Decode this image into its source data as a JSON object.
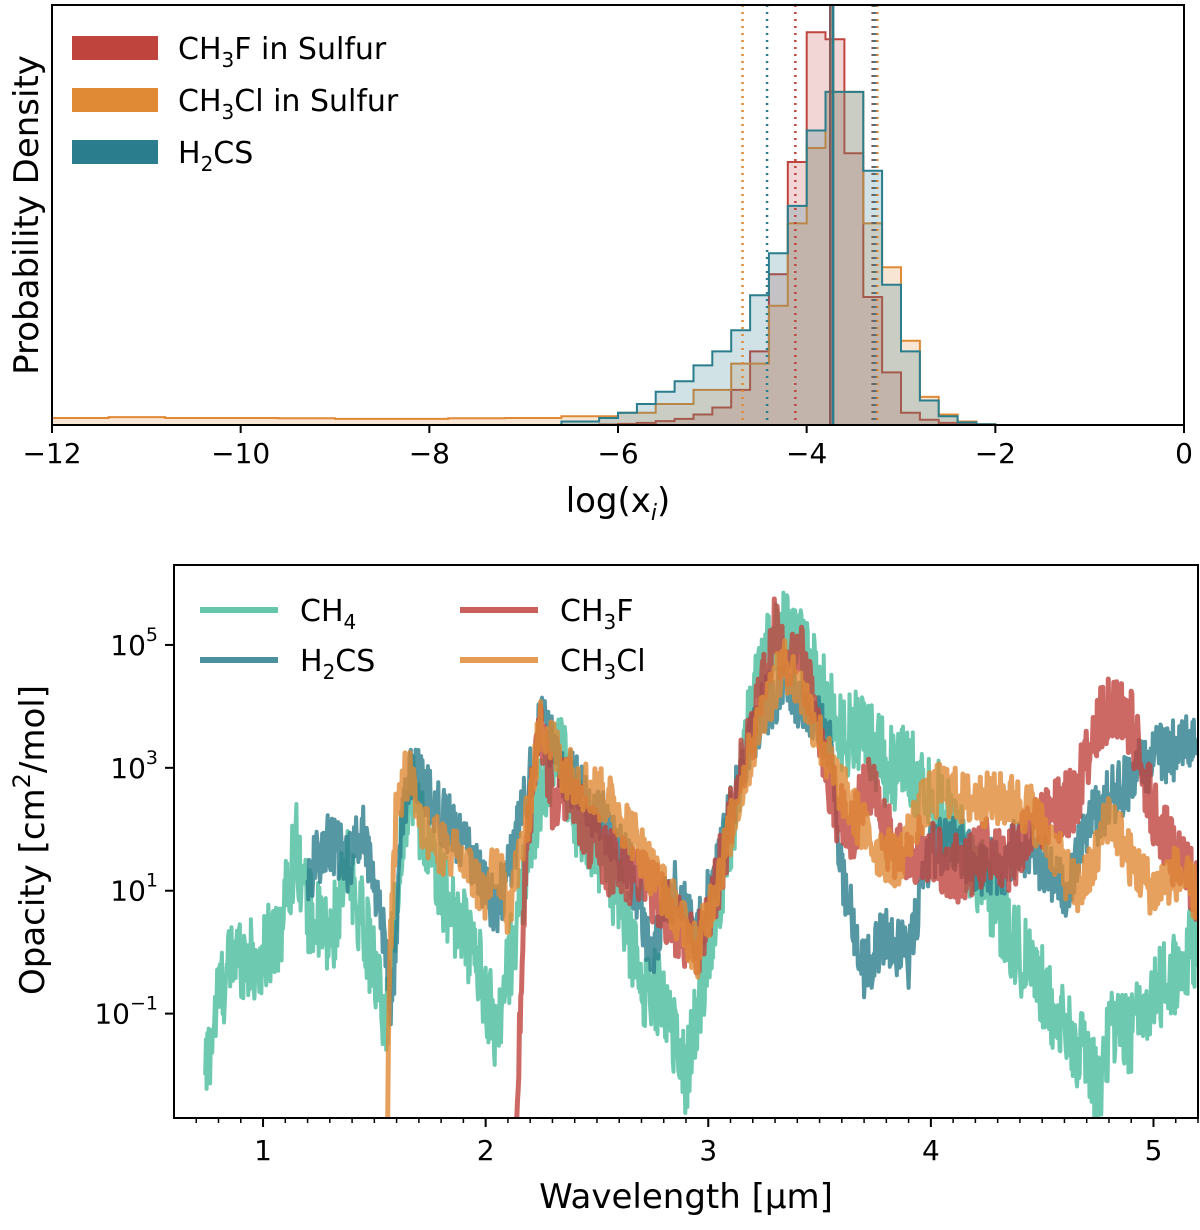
{
  "colors": {
    "ch3f": "#c0443e",
    "ch3cl": "#e08a36",
    "h2cs": "#2a7d8c",
    "ch4": "#49bd9e",
    "median_gray": "#666666"
  },
  "chart_data": [
    {
      "type": "histogram",
      "title": "",
      "xlabel": "log(x_i)",
      "xlabel_parts": {
        "main": "log(x",
        "sub": "i",
        "close": ")"
      },
      "ylabel": "Probability Density",
      "xlim": [
        -12,
        0
      ],
      "xticks": [
        -12,
        -10,
        -8,
        -6,
        -4,
        -2,
        0
      ],
      "xtick_labels": [
        "−12",
        "−10",
        "−8",
        "−6",
        "−4",
        "−2",
        "0"
      ],
      "legend_position": "top-left",
      "series": [
        {
          "name": "CH3F in Sulfur",
          "label_parts": [
            "CH",
            "3",
            "F in Sulfur"
          ],
          "color_key": "ch3f",
          "fill": true,
          "edges": [
            -6.2,
            -6.0,
            -5.8,
            -5.6,
            -5.4,
            -5.2,
            -5.0,
            -4.8,
            -4.6,
            -4.4,
            -4.2,
            -4.0,
            -3.8,
            -3.6,
            -3.4,
            -3.2,
            -3.0,
            -2.8,
            -2.6,
            -2.4,
            -2.2,
            -2.0
          ],
          "density": [
            0.003,
            0.006,
            0.012,
            0.022,
            0.035,
            0.06,
            0.1,
            0.2,
            0.42,
            0.86,
            1.5,
            2.24,
            2.2,
            1.55,
            0.73,
            0.3,
            0.07,
            0.03,
            0.012,
            0.004,
            0.001
          ],
          "median": -3.75,
          "ci": [
            -4.12,
            -3.3
          ]
        },
        {
          "name": "CH3Cl in Sulfur",
          "label_parts": [
            "CH",
            "3",
            "Cl in Sulfur"
          ],
          "color_key": "ch3cl",
          "fill": true,
          "edges": [
            -12.0,
            -11.4,
            -10.8,
            -10.2,
            -9.6,
            -9.0,
            -8.4,
            -7.8,
            -7.2,
            -6.6,
            -6.0,
            -5.6,
            -5.2,
            -4.8,
            -4.4,
            -4.2,
            -4.0,
            -3.8,
            -3.6,
            -3.4,
            -3.2,
            -3.0,
            -2.8,
            -2.6,
            -2.4,
            -2.2,
            -2.0
          ],
          "density": [
            0.04,
            0.045,
            0.04,
            0.04,
            0.038,
            0.035,
            0.035,
            0.038,
            0.04,
            0.05,
            0.07,
            0.12,
            0.2,
            0.35,
            0.68,
            1.15,
            1.58,
            1.9,
            1.9,
            1.15,
            0.9,
            0.48,
            0.16,
            0.06,
            0.02,
            0.005
          ],
          "median": -3.72,
          "ci": [
            -4.68,
            -3.25
          ]
        },
        {
          "name": "H2CS",
          "label_parts": [
            "H",
            "2",
            "CS"
          ],
          "color_key": "h2cs",
          "fill": true,
          "edges": [
            -6.6,
            -6.2,
            -6.0,
            -5.8,
            -5.6,
            -5.4,
            -5.2,
            -5.0,
            -4.8,
            -4.6,
            -4.4,
            -4.2,
            -4.0,
            -3.8,
            -3.6,
            -3.4,
            -3.2,
            -3.0,
            -2.8,
            -2.6,
            -2.4,
            -2.2,
            -2.0
          ],
          "density": [
            0.02,
            0.04,
            0.07,
            0.12,
            0.19,
            0.25,
            0.34,
            0.42,
            0.54,
            0.74,
            0.98,
            1.25,
            1.68,
            1.9,
            1.9,
            1.45,
            0.8,
            0.42,
            0.14,
            0.05,
            0.015,
            0.004
          ],
          "median": -3.72,
          "ci": [
            -4.42,
            -3.28
          ]
        }
      ]
    },
    {
      "type": "line",
      "title": "",
      "xlabel": "Wavelength [µm]",
      "ylabel": "Opacity [cm²/mol]",
      "ylabel_parts": {
        "main": "Opacity [cm",
        "sup": "2",
        "close": "/mol]"
      },
      "yscale": "log",
      "xlim": [
        0.6,
        5.2
      ],
      "ylim": [
        0.002,
        2000000
      ],
      "xticks": [
        1,
        2,
        3,
        4,
        5
      ],
      "xtick_labels": [
        "1",
        "2",
        "3",
        "4",
        "5"
      ],
      "yticks": [
        0.1,
        10,
        1000,
        100000
      ],
      "ytick_labels": [
        {
          "base": "10",
          "exp": "−1"
        },
        {
          "base": "10",
          "exp": "1"
        },
        {
          "base": "10",
          "exp": "3"
        },
        {
          "base": "10",
          "exp": "5"
        }
      ],
      "legend_position": "top-left",
      "legend_columns": 2,
      "series": [
        {
          "name": "CH4",
          "label_parts": [
            "CH",
            "4",
            ""
          ],
          "color_key": "ch4",
          "x": [
            0.74,
            0.8,
            0.88,
            0.98,
            1.08,
            1.15,
            1.2,
            1.3,
            1.38,
            1.45,
            1.5,
            1.55,
            1.6,
            1.66,
            1.75,
            1.85,
            1.95,
            2.05,
            2.15,
            2.25,
            2.33,
            2.4,
            2.5,
            2.6,
            2.7,
            2.8,
            2.9,
            3.0,
            3.1,
            3.2,
            3.3,
            3.4,
            3.5,
            3.6,
            3.7,
            3.8,
            3.9,
            4.0,
            4.1,
            4.2,
            4.3,
            4.4,
            4.5,
            4.6,
            4.7,
            4.75,
            4.8,
            4.9,
            5.0,
            5.1,
            5.2
          ],
          "y": [
            0.01,
            0.2,
            1.0,
            0.6,
            3.0,
            60,
            5,
            1.5,
            20,
            3,
            0.5,
            0.05,
            10,
            800,
            30,
            5,
            1,
            0.05,
            5,
            500,
            3000,
            200,
            50,
            8,
            0.3,
            0.2,
            0.01,
            1,
            100,
            10000,
            200000,
            100000,
            20000,
            3000,
            5000,
            1000,
            1000,
            500,
            100,
            20,
            5,
            1,
            0.3,
            0.05,
            0.02,
            0.005,
            0.05,
            0.05,
            0.2,
            0.5,
            1.5
          ],
          "noise": 0.7,
          "width": 4
        },
        {
          "name": "H2CS",
          "label_parts": [
            "H",
            "2",
            "CS"
          ],
          "color_key": "h2cs",
          "x": [
            1.2,
            1.25,
            1.3,
            1.38,
            1.45,
            1.5,
            1.55,
            1.58,
            1.62,
            1.67,
            1.75,
            1.85,
            1.95,
            2.05,
            2.15,
            2.25,
            2.35,
            2.45,
            2.55,
            2.65,
            2.75,
            2.8,
            2.85,
            2.95,
            3.05,
            3.15,
            3.25,
            3.35,
            3.45,
            3.55,
            3.6,
            3.65,
            3.7,
            3.8,
            3.9,
            4.0,
            4.1,
            4.2,
            4.3,
            4.4,
            4.5,
            4.6,
            4.7,
            4.8,
            4.9,
            5.0,
            5.1,
            5.2
          ],
          "y": [
            15,
            40,
            60,
            30,
            100,
            15,
            1.5,
            0.1,
            100,
            1000,
            300,
            100,
            30,
            5,
            100,
            6000,
            1000,
            300,
            100,
            20,
            1,
            5,
            10,
            2,
            30,
            1000,
            10000,
            20000,
            10000,
            2000,
            20,
            3,
            0.5,
            2,
            0.8,
            50,
            60,
            30,
            20,
            60,
            30,
            10,
            100,
            300,
            700,
            1500,
            2000,
            3000
          ],
          "noise": 0.5,
          "width": 4
        },
        {
          "name": "CH3F",
          "label_parts": [
            "CH",
            "3",
            "F"
          ],
          "color_key": "ch3f",
          "x": [
            2.14,
            2.17,
            2.2,
            2.25,
            2.3,
            2.38,
            2.45,
            2.55,
            2.65,
            2.75,
            2.85,
            2.95,
            3.05,
            3.15,
            3.25,
            3.3,
            3.35,
            3.4,
            3.45,
            3.5,
            3.58,
            3.65,
            3.72,
            3.8,
            3.88,
            3.95,
            4.05,
            4.15,
            4.25,
            4.35,
            4.45,
            4.55,
            4.65,
            4.72,
            4.8,
            4.9,
            5.0,
            5.1,
            5.2
          ],
          "y": [
            0.002,
            5,
            200,
            5000,
            300,
            500,
            100,
            30,
            20,
            10,
            3,
            1,
            20,
            1000,
            20000,
            200000,
            40000,
            100000,
            20000,
            3000,
            200,
            100,
            600,
            80,
            30,
            50,
            30,
            20,
            50,
            30,
            80,
            200,
            300,
            3000,
            10000,
            5000,
            200,
            30,
            10
          ],
          "noise": 0.55,
          "width": 5
        },
        {
          "name": "CH3Cl",
          "label_parts": [
            "CH",
            "3",
            "Cl"
          ],
          "color_key": "ch3cl",
          "x": [
            1.56,
            1.57,
            1.6,
            1.66,
            1.72,
            1.8,
            1.9,
            2.0,
            2.05,
            2.1,
            2.18,
            2.25,
            2.35,
            2.45,
            2.55,
            2.65,
            2.75,
            2.85,
            2.95,
            3.05,
            3.15,
            3.25,
            3.35,
            3.45,
            3.55,
            3.65,
            3.75,
            3.85,
            3.95,
            4.05,
            4.15,
            4.25,
            4.35,
            4.45,
            4.55,
            4.65,
            4.72,
            4.8,
            4.9,
            5.0,
            5.1,
            5.2
          ],
          "y": [
            0.002,
            1,
            300,
            1000,
            100,
            50,
            30,
            8,
            30,
            5,
            100,
            6000,
            1000,
            500,
            300,
            100,
            20,
            5,
            1,
            20,
            500,
            10000,
            50000,
            10000,
            1000,
            200,
            50,
            30,
            200,
            500,
            300,
            300,
            300,
            200,
            50,
            10,
            20,
            200,
            30,
            10,
            20,
            8
          ],
          "noise": 0.45,
          "width": 5
        }
      ]
    }
  ]
}
